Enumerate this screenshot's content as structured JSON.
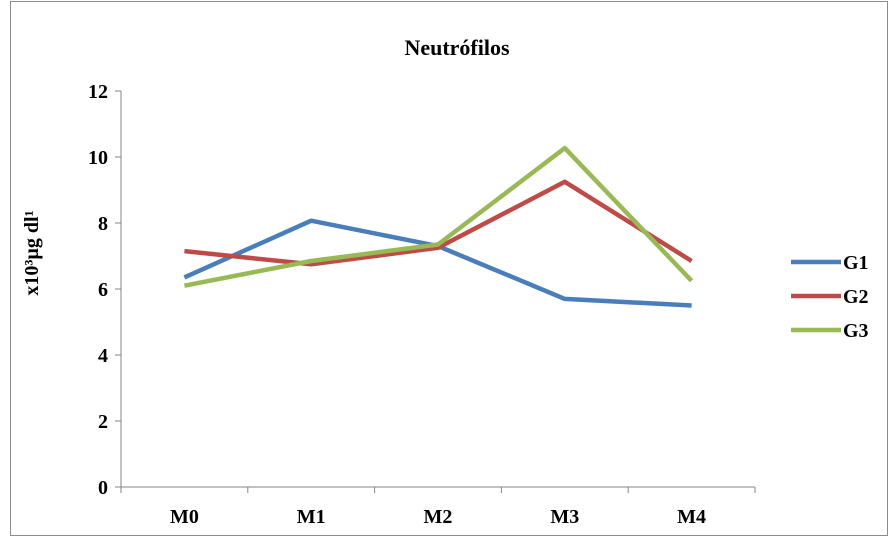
{
  "chart_data": {
    "type": "line",
    "title": "Neutrófilos",
    "xlabel": "",
    "ylabel": "x10³µg dl¹",
    "categories": [
      "M0",
      "M1",
      "M2",
      "M3",
      "M4"
    ],
    "ylim": [
      0,
      12
    ],
    "yticks": [
      0,
      2,
      4,
      6,
      8,
      10,
      12
    ],
    "grid": false,
    "legend": "right",
    "series": [
      {
        "name": "G1",
        "color": "#4a7ebb",
        "values": [
          6.35,
          8.07,
          7.3,
          5.7,
          5.5
        ]
      },
      {
        "name": "G2",
        "color": "#be4b48",
        "values": [
          7.15,
          6.75,
          7.25,
          9.25,
          6.85
        ]
      },
      {
        "name": "G3",
        "color": "#98b954",
        "values": [
          6.1,
          6.85,
          7.35,
          10.27,
          6.25
        ]
      }
    ]
  }
}
